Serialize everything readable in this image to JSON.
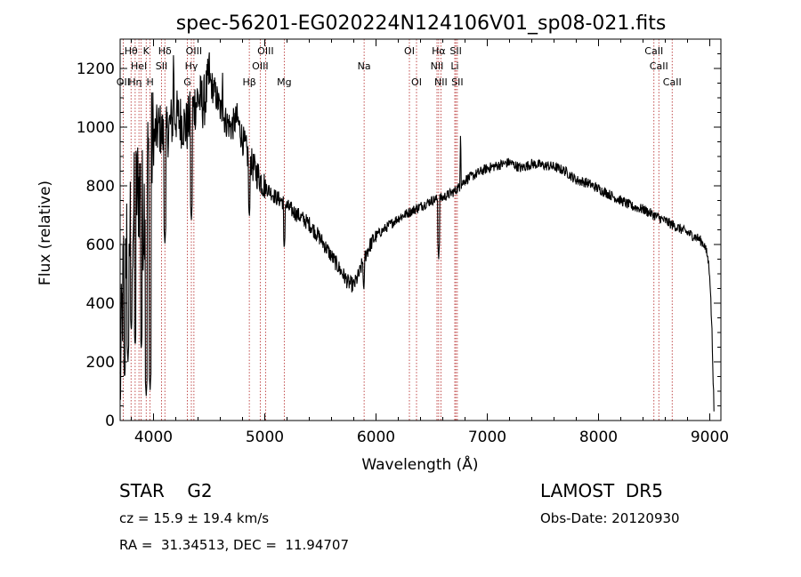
{
  "chart_data": {
    "type": "line",
    "title": "spec-56201-EG020224N124106V01_sp08-021.fits",
    "xlabel": "Wavelength (Å)",
    "ylabel": "Flux (relative)",
    "xlim": [
      3700,
      9100
    ],
    "ylim": [
      0,
      1300
    ],
    "xticks": [
      4000,
      5000,
      6000,
      7000,
      8000,
      9000
    ],
    "yticks": [
      0,
      200,
      400,
      600,
      800,
      1000,
      1200
    ],
    "grid": false,
    "line_color": "#000000",
    "marker_color": "#b22222",
    "continuum": {
      "x": [
        3700,
        3720,
        3740,
        3760,
        3780,
        3800,
        3820,
        3850,
        3880,
        3910,
        3940,
        3970,
        4000,
        4050,
        4100,
        4150,
        4200,
        4250,
        4300,
        4350,
        4400,
        4450,
        4500,
        4550,
        4600,
        4650,
        4700,
        4750,
        4800,
        4850,
        4900,
        4950,
        5000,
        5050,
        5100,
        5150,
        5200,
        5300,
        5400,
        5500,
        5600,
        5700,
        5750,
        5800,
        5850,
        5880,
        5900,
        5950,
        6000,
        6100,
        6200,
        6300,
        6400,
        6500,
        6600,
        6700,
        6760,
        6800,
        6900,
        7000,
        7100,
        7200,
        7300,
        7400,
        7500,
        7600,
        7700,
        7800,
        7900,
        8000,
        8100,
        8200,
        8300,
        8400,
        8500,
        8600,
        8700,
        8800,
        8900,
        8950,
        8980,
        9000,
        9020,
        9040
      ],
      "y": [
        100,
        400,
        560,
        620,
        660,
        620,
        700,
        780,
        800,
        700,
        860,
        900,
        960,
        1000,
        960,
        1010,
        1040,
        1020,
        1000,
        1060,
        1100,
        1080,
        1160,
        1120,
        1060,
        1020,
        1000,
        1030,
        960,
        900,
        860,
        830,
        800,
        780,
        760,
        750,
        730,
        700,
        670,
        620,
        560,
        500,
        470,
        460,
        500,
        540,
        560,
        600,
        630,
        660,
        690,
        710,
        730,
        750,
        760,
        780,
        800,
        820,
        840,
        860,
        870,
        880,
        860,
        875,
        870,
        865,
        850,
        820,
        810,
        790,
        770,
        750,
        730,
        720,
        700,
        680,
        660,
        640,
        620,
        600,
        560,
        500,
        300,
        0
      ]
    },
    "dips": [
      {
        "x": 3740,
        "y": 140
      },
      {
        "x": 3770,
        "y": 200
      },
      {
        "x": 3800,
        "y": 300
      },
      {
        "x": 3835,
        "y": 250
      },
      {
        "x": 3890,
        "y": 240
      },
      {
        "x": 3934,
        "y": 80
      },
      {
        "x": 3969,
        "y": 100
      },
      {
        "x": 4102,
        "y": 600
      },
      {
        "x": 4340,
        "y": 680
      },
      {
        "x": 4861,
        "y": 690
      },
      {
        "x": 5175,
        "y": 580
      },
      {
        "x": 5890,
        "y": 440
      },
      {
        "x": 6563,
        "y": 550
      }
    ],
    "peaks": [
      {
        "x": 4500,
        "y": 1300
      },
      {
        "x": 4180,
        "y": 1260
      },
      {
        "x": 6760,
        "y": 1000
      },
      {
        "x": 4620,
        "y": 1200
      }
    ],
    "lines": [
      {
        "wl": 3727,
        "row": 2,
        "label": "OII"
      },
      {
        "wl": 3798,
        "row": 0,
        "label": "Hθ"
      },
      {
        "wl": 3835,
        "row": 2,
        "label": "Hη"
      },
      {
        "wl": 3869,
        "row": 1,
        "label": "HeI"
      },
      {
        "wl": 3889,
        "row": 1,
        "label": ""
      },
      {
        "wl": 3934,
        "row": 0,
        "label": "K"
      },
      {
        "wl": 3969,
        "row": 2,
        "label": "H"
      },
      {
        "wl": 4072,
        "row": 1,
        "label": "SII"
      },
      {
        "wl": 4102,
        "row": 0,
        "label": "Hδ"
      },
      {
        "wl": 4304,
        "row": 2,
        "label": "G"
      },
      {
        "wl": 4340,
        "row": 1,
        "label": "Hγ"
      },
      {
        "wl": 4363,
        "row": 0,
        "label": "OIII"
      },
      {
        "wl": 4861,
        "row": 2,
        "label": "Hβ"
      },
      {
        "wl": 4959,
        "row": 1,
        "label": "OIII"
      },
      {
        "wl": 5007,
        "row": 0,
        "label": "OIII"
      },
      {
        "wl": 5175,
        "row": 2,
        "label": "Mg"
      },
      {
        "wl": 5893,
        "row": 1,
        "label": "Na"
      },
      {
        "wl": 6300,
        "row": 0,
        "label": "OI"
      },
      {
        "wl": 6364,
        "row": 2,
        "label": "OI"
      },
      {
        "wl": 6548,
        "row": 1,
        "label": "NII"
      },
      {
        "wl": 6563,
        "row": 0,
        "label": "Hα"
      },
      {
        "wl": 6583,
        "row": 2,
        "label": "NII"
      },
      {
        "wl": 6708,
        "row": 1,
        "label": "Li"
      },
      {
        "wl": 6717,
        "row": 0,
        "label": "SII"
      },
      {
        "wl": 6731,
        "row": 2,
        "label": "SII"
      },
      {
        "wl": 8498,
        "row": 0,
        "label": "CaII"
      },
      {
        "wl": 8542,
        "row": 1,
        "label": "CaII"
      },
      {
        "wl": 8662,
        "row": 2,
        "label": "CaII"
      }
    ]
  },
  "info": {
    "classification": "STAR    G2",
    "redshift": "cz = 15.9 ± 19.4 km/s",
    "coords": "RA =  31.34513, DEC =  11.94707",
    "survey": "LAMOST  DR5",
    "obs_date": "Obs-Date: 20120930"
  }
}
